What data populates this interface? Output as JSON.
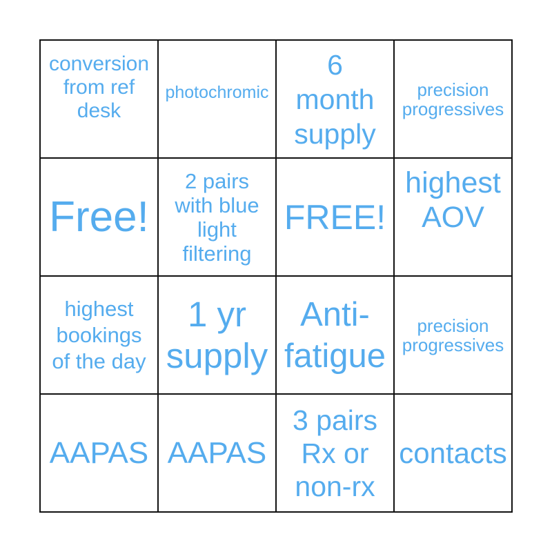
{
  "page": {
    "background": "#ffffff"
  },
  "card": {
    "type": "bingo-card",
    "rows": 4,
    "cols": 4,
    "grid_border_color": "#111111",
    "cell_text_color": "#55acee",
    "cells": [
      {
        "row": 0,
        "col": 0,
        "text": "conversion\nfrom ref\ndesk"
      },
      {
        "row": 0,
        "col": 1,
        "text": "photochromic"
      },
      {
        "row": 0,
        "col": 2,
        "text": "6\nmonth\nsupply"
      },
      {
        "row": 0,
        "col": 3,
        "text": "precision\nprogressives"
      },
      {
        "row": 1,
        "col": 0,
        "text": "Free!"
      },
      {
        "row": 1,
        "col": 1,
        "text": "2 pairs\nwith blue\nlight\nfiltering"
      },
      {
        "row": 1,
        "col": 2,
        "text": "FREE!"
      },
      {
        "row": 1,
        "col": 3,
        "text": "highest\nAOV"
      },
      {
        "row": 2,
        "col": 0,
        "text": "highest\nbookings\nof the day"
      },
      {
        "row": 2,
        "col": 1,
        "text": "1 yr\nsupply"
      },
      {
        "row": 2,
        "col": 2,
        "text": "Anti-\nfatigue"
      },
      {
        "row": 2,
        "col": 3,
        "text": "precision\nprogressives"
      },
      {
        "row": 3,
        "col": 0,
        "text": "AAPAS"
      },
      {
        "row": 3,
        "col": 1,
        "text": "AAPAS"
      },
      {
        "row": 3,
        "col": 2,
        "text": "3 pairs\nRx or\nnon-rx"
      },
      {
        "row": 3,
        "col": 3,
        "text": "contacts"
      }
    ]
  }
}
